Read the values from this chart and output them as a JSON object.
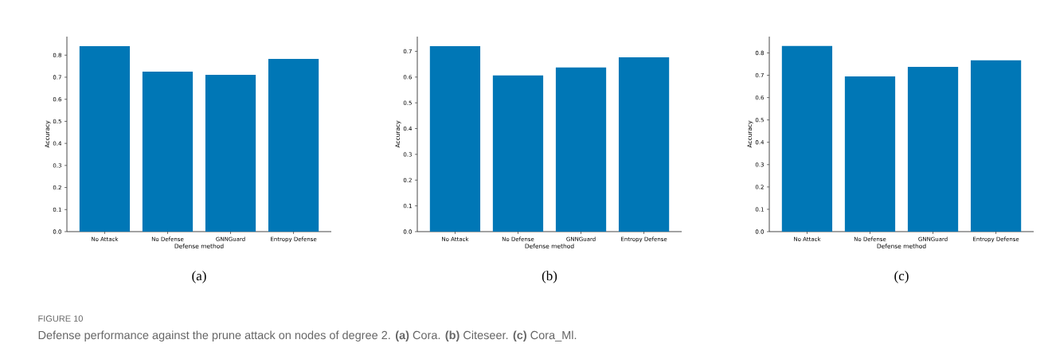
{
  "chart_data": [
    {
      "type": "bar",
      "xlabel": "Defense method",
      "ylabel": "Accuracy",
      "categories": [
        "No Attack",
        "No Defense",
        "GNNGuard",
        "Entropy Defense"
      ],
      "values": [
        0.841,
        0.725,
        0.711,
        0.783
      ],
      "color": "#0077b6",
      "ylim": [
        0,
        0.884
      ],
      "yticks": [
        {
          "value": 0,
          "label": "0.0"
        },
        {
          "value": 0.1,
          "label": "0.1"
        },
        {
          "value": 0.2,
          "label": "0.2"
        },
        {
          "value": 0.3,
          "label": "0.3"
        },
        {
          "value": 0.4,
          "label": "0.4"
        },
        {
          "value": 0.5,
          "label": "0.5"
        },
        {
          "value": 0.6,
          "label": "0.6"
        },
        {
          "value": 0.7,
          "label": "0.7"
        },
        {
          "value": 0.8,
          "label": "0.8"
        }
      ],
      "annotations": [
        "(a)",
        "FIGURE 10",
        "Defense performance against the prune attack on nodes of degree 2. **(a)** Cora. **(b)** Citeseer. **(c)** Cora_Ml."
      ]
    },
    {
      "type": "bar",
      "xlabel": "Defense method",
      "ylabel": "Accuracy",
      "categories": [
        "No Attack",
        "No Defense",
        "GNNGuard",
        "Entropy Defense"
      ],
      "values": [
        0.72,
        0.606,
        0.637,
        0.677
      ],
      "color": "#0077b6",
      "ylim": [
        0,
        0.757
      ],
      "yticks": [
        {
          "value": 0,
          "label": "0.0"
        },
        {
          "value": 0.1,
          "label": "0.1"
        },
        {
          "value": 0.2,
          "label": "0.2"
        },
        {
          "value": 0.3,
          "label": "0.3"
        },
        {
          "value": 0.4,
          "label": "0.4"
        },
        {
          "value": 0.5,
          "label": "0.5"
        },
        {
          "value": 0.6,
          "label": "0.6"
        },
        {
          "value": 0.7,
          "label": "0.7"
        }
      ],
      "annotations": [
        "(b)"
      ]
    },
    {
      "type": "bar",
      "xlabel": "Defense method",
      "ylabel": "Accuracy",
      "categories": [
        "No Attack",
        "No Defense",
        "GNNGuard",
        "Entropy Defense"
      ],
      "values": [
        0.831,
        0.695,
        0.738,
        0.767
      ],
      "color": "#0077b6",
      "ylim": [
        0,
        0.873
      ],
      "yticks": [
        {
          "value": 0,
          "label": "0.0"
        },
        {
          "value": 0.1,
          "label": "0.1"
        },
        {
          "value": 0.2,
          "label": "0.2"
        },
        {
          "value": 0.3,
          "label": "0.3"
        },
        {
          "value": 0.4,
          "label": "0.4"
        },
        {
          "value": 0.5,
          "label": "0.5"
        },
        {
          "value": 0.6,
          "label": "0.6"
        },
        {
          "value": 0.7,
          "label": "0.7"
        },
        {
          "value": 0.8,
          "label": "0.8"
        }
      ],
      "annotations": [
        "(c)"
      ]
    }
  ]
}
